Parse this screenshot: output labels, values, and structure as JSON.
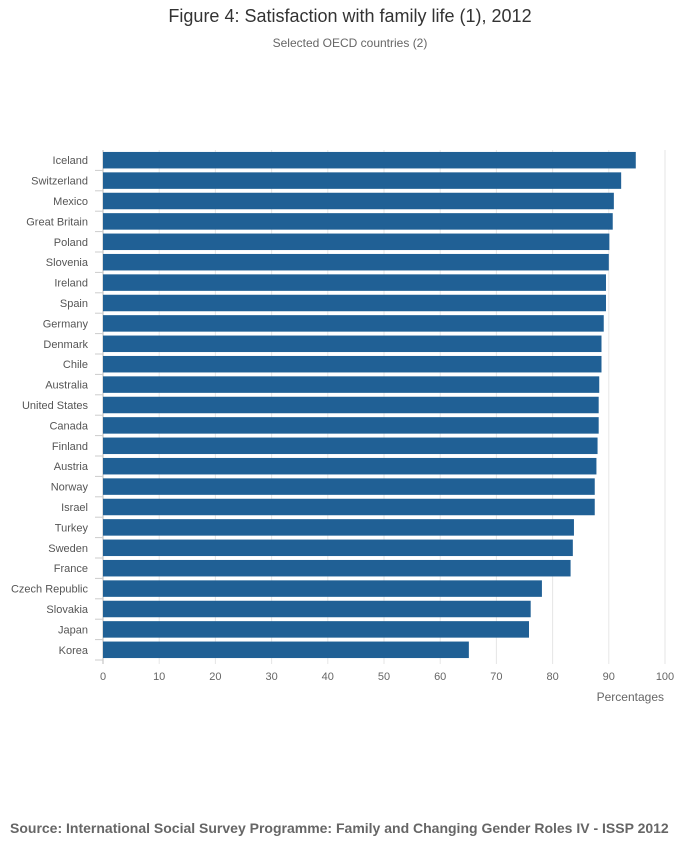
{
  "chart_data": {
    "type": "bar",
    "orientation": "horizontal",
    "title": "Figure 4: Satisfaction with family life (1), 2012",
    "subtitle": "Selected OECD countries (2)",
    "xlabel": "Percentages",
    "ylabel": "",
    "xlim": [
      0,
      100
    ],
    "x_ticks": [
      0,
      10,
      20,
      30,
      40,
      50,
      60,
      70,
      80,
      90,
      100
    ],
    "grid": true,
    "bar_color": "#206095",
    "categories": [
      "Iceland",
      "Switzerland",
      "Mexico",
      "Great Britain",
      "Poland",
      "Slovenia",
      "Ireland",
      "Spain",
      "Germany",
      "Denmark",
      "Chile",
      "Australia",
      "United States",
      "Canada",
      "Finland",
      "Austria",
      "Norway",
      "Israel",
      "Turkey",
      "Sweden",
      "France",
      "Czech Republic",
      "Slovakia",
      "Japan",
      "Korea"
    ],
    "values": [
      94.8,
      92.2,
      90.9,
      90.7,
      90.1,
      90.0,
      89.5,
      89.5,
      89.1,
      88.7,
      88.7,
      88.3,
      88.2,
      88.2,
      88.0,
      87.8,
      87.5,
      87.5,
      83.8,
      83.6,
      83.2,
      78.1,
      76.1,
      75.8,
      65.1
    ]
  },
  "footer": {
    "source": "Source: International Social Survey Programme: Family and Changing Gender Roles IV - ISSP 2012"
  }
}
